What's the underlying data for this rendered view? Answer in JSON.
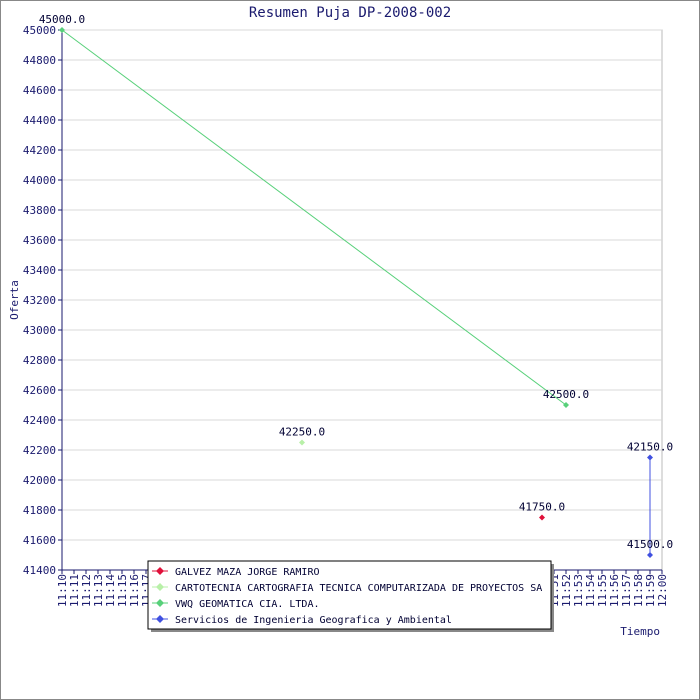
{
  "chart_data": {
    "type": "line",
    "title": "Resumen Puja DP-2008-002",
    "x_label": "Tiempo",
    "y_label": "Oferta",
    "ylim": [
      41400,
      45000
    ],
    "yticks": [
      41400,
      41600,
      41800,
      42000,
      42200,
      42400,
      42600,
      42800,
      43000,
      43200,
      43400,
      43600,
      43800,
      44000,
      44200,
      44400,
      44600,
      44800,
      45000
    ],
    "xlim": [
      "11:10",
      "12:00"
    ],
    "xticks": [
      "11:10",
      "11:11",
      "11:12",
      "11:13",
      "11:14",
      "11:15",
      "11:16",
      "11:17",
      "11:18",
      "11:19",
      "11:20",
      "11:21",
      "11:22",
      "11:23",
      "11:24",
      "11:25",
      "11:26",
      "11:27",
      "11:28",
      "11:29",
      "11:30",
      "11:31",
      "11:32",
      "11:33",
      "11:34",
      "11:35",
      "11:36",
      "11:37",
      "11:38",
      "11:39",
      "11:40",
      "11:41",
      "11:42",
      "11:43",
      "11:44",
      "11:45",
      "11:46",
      "11:47",
      "11:48",
      "11:49",
      "11:50",
      "11:51",
      "11:52",
      "11:53",
      "11:54",
      "11:55",
      "11:56",
      "11:57",
      "11:58",
      "11:59",
      "12:00"
    ],
    "grid": true,
    "series": [
      {
        "name": "GALVEZ MAZA JORGE RAMIRO",
        "color": "#e0103a",
        "x": [
          "11:50"
        ],
        "values": [
          41750
        ],
        "value_labels": [
          "41750.0"
        ]
      },
      {
        "name": "CARTOTECNIA CARTOGRAFIA TECNICA COMPUTARIZADA DE PROYECTOS SA",
        "color": "#b8f0a8",
        "x": [
          "11:30"
        ],
        "values": [
          42250
        ],
        "value_labels": [
          "42250.0"
        ]
      },
      {
        "name": "VWQ GEOMATICA CIA. LTDA.",
        "color": "#58d07a",
        "x": [
          "11:10",
          "11:52"
        ],
        "values": [
          45000,
          42500
        ],
        "value_labels": [
          "45000.0",
          "42500.0"
        ]
      },
      {
        "name": "Servicios de Ingenieria Geografica y Ambiental",
        "color": "#4050e0",
        "x": [
          "11:59",
          "11:59"
        ],
        "values": [
          42150,
          41500
        ],
        "value_labels": [
          "42150.0",
          "41500.0"
        ]
      }
    ]
  }
}
